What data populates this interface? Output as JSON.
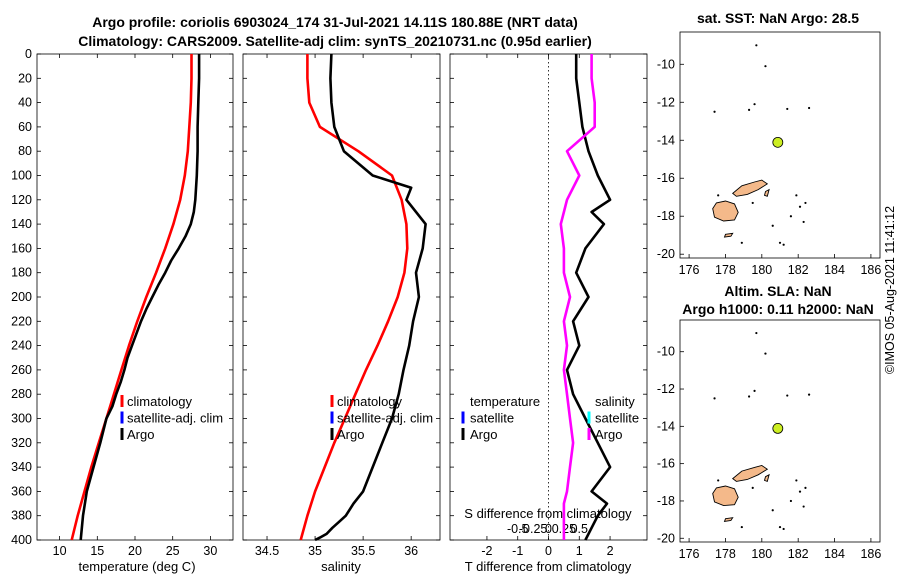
{
  "header": {
    "title_line1": "Argo profile: coriolis 6903024_174 31-Jul-2021 14.11S 180.88E (NRT data)",
    "title_line2": "Climatology: CARS2009. Satellite-adj clim: synTS_20210731.nc (0.95d earlier)"
  },
  "timestamp": "©IMOS 05-Aug-2021 11:41:12",
  "colors": {
    "climatology": "#ff0000",
    "satellite_clim": "#0000ff",
    "argo": "#000000",
    "sal_diff": "#ff00ff",
    "sat_sal_diff": "#00ffff",
    "land": "#f4b98a",
    "marker": "#ccee22"
  },
  "chart_data": [
    {
      "type": "line",
      "id": "temperature",
      "xlabel": "temperature (deg C)",
      "ylabel": "",
      "xlim": [
        7,
        33
      ],
      "ylim": [
        400,
        0
      ],
      "xticks": [
        10,
        15,
        20,
        25,
        30
      ],
      "yticks": [
        0,
        20,
        40,
        60,
        80,
        100,
        120,
        140,
        160,
        180,
        200,
        220,
        240,
        260,
        280,
        300,
        320,
        340,
        360,
        380,
        400
      ],
      "legend": [
        "climatology",
        "satellite-adj. clim",
        "Argo"
      ],
      "series": [
        {
          "name": "climatology",
          "color": "#ff0000",
          "x": [
            27.5,
            27.5,
            27.4,
            27.2,
            27.0,
            26.6,
            26.0,
            25.1,
            24.0,
            22.8,
            21.5,
            20.3,
            19.2,
            18.2,
            17.2,
            16.2,
            15.2,
            14.2,
            13.3,
            12.4,
            11.6
          ],
          "depth": [
            0,
            20,
            40,
            60,
            80,
            100,
            120,
            140,
            160,
            180,
            200,
            220,
            240,
            260,
            280,
            300,
            320,
            340,
            360,
            380,
            400
          ]
        },
        {
          "name": "Argo",
          "color": "#000000",
          "x": [
            28.5,
            28.5,
            28.4,
            28.3,
            28.3,
            28.2,
            28.0,
            27.8,
            27.4,
            26.7,
            25.8,
            24.8,
            24.0,
            23.1,
            22.3,
            21.5,
            20.8,
            20.2,
            19.6,
            19.0,
            18.6,
            18.1,
            17.5,
            17.0,
            16.2,
            15.4,
            14.5,
            13.6,
            13.1,
            12.8
          ],
          "depth": [
            0,
            20,
            40,
            60,
            80,
            100,
            120,
            130,
            140,
            150,
            160,
            170,
            180,
            190,
            200,
            210,
            220,
            230,
            240,
            250,
            260,
            270,
            280,
            290,
            300,
            320,
            340,
            360,
            380,
            400
          ]
        }
      ]
    },
    {
      "type": "line",
      "id": "salinity",
      "xlabel": "salinity",
      "ylabel": "",
      "xlim": [
        34.25,
        36.3
      ],
      "ylim": [
        400,
        0
      ],
      "xticks": [
        34.5,
        35,
        35.5,
        36
      ],
      "legend": [
        "climatology",
        "satellite-adj. clim",
        "Argo"
      ],
      "series": [
        {
          "name": "climatology",
          "color": "#ff0000",
          "x": [
            34.92,
            34.92,
            34.94,
            35.05,
            35.45,
            35.8,
            35.9,
            35.95,
            35.96,
            35.93,
            35.86,
            35.76,
            35.65,
            35.53,
            35.42,
            35.31,
            35.2,
            35.1,
            35.0,
            34.92,
            34.85
          ],
          "depth": [
            0,
            20,
            40,
            60,
            80,
            100,
            120,
            140,
            160,
            180,
            200,
            220,
            240,
            260,
            280,
            300,
            320,
            340,
            360,
            380,
            400
          ]
        },
        {
          "name": "Argo",
          "color": "#000000",
          "x": [
            35.17,
            35.16,
            35.17,
            35.2,
            35.3,
            35.6,
            36.0,
            35.95,
            36.15,
            36.12,
            36.05,
            36.08,
            36.02,
            35.98,
            35.92,
            35.87,
            35.8,
            35.7,
            35.6,
            35.5,
            35.4,
            35.32,
            35.25,
            35.18,
            35.12,
            35.05,
            35.0
          ],
          "depth": [
            0,
            20,
            40,
            60,
            80,
            100,
            110,
            120,
            140,
            160,
            180,
            200,
            220,
            240,
            260,
            280,
            300,
            320,
            340,
            360,
            370,
            380,
            385,
            390,
            395,
            398,
            400
          ]
        }
      ]
    },
    {
      "type": "line",
      "id": "difference",
      "xlabel": "T difference from climatology",
      "xlabel2": "S difference from climatology",
      "xlim": [
        -3.2,
        3.2
      ],
      "ylim": [
        400,
        0
      ],
      "xticks": [
        -2,
        -1,
        0,
        1,
        2
      ],
      "xticks2": [
        "-0.5",
        "-0.25",
        "0",
        "0.25",
        "0.5"
      ],
      "legend_t": [
        "temperature",
        "satellite",
        "Argo"
      ],
      "legend_s": [
        "salinity",
        "satellite",
        "Argo"
      ],
      "series": [
        {
          "name": "temperature",
          "color": "#000000",
          "x": [
            0.9,
            0.9,
            1.0,
            1.1,
            1.3,
            1.6,
            2.0,
            1.4,
            1.8,
            1.2,
            0.9,
            1.3,
            0.8,
            1.0,
            0.6,
            0.8,
            1.2,
            1.6,
            2.0,
            1.4,
            1.9,
            1.6,
            1.2
          ],
          "depth": [
            0,
            20,
            40,
            60,
            80,
            100,
            120,
            130,
            140,
            160,
            180,
            200,
            220,
            240,
            260,
            280,
            300,
            320,
            340,
            360,
            370,
            380,
            400
          ]
        },
        {
          "name": "salinity",
          "color": "#ff00ff",
          "x": [
            1.4,
            1.4,
            1.5,
            1.5,
            0.6,
            1.0,
            0.6,
            0.5,
            0.4,
            0.5,
            0.5,
            0.7,
            0.5,
            0.6,
            0.5,
            0.6,
            0.7,
            0.8,
            0.7,
            0.6,
            0.5,
            0.5,
            0.5
          ],
          "depth": [
            0,
            20,
            40,
            60,
            80,
            100,
            120,
            130,
            140,
            160,
            180,
            200,
            220,
            240,
            260,
            280,
            300,
            320,
            340,
            360,
            370,
            380,
            400
          ]
        }
      ]
    },
    {
      "type": "map",
      "id": "map_sst",
      "title": "sat. SST: NaN Argo: 28.5",
      "xlim": [
        175.5,
        186.5
      ],
      "ylim": [
        -20.2,
        -8.3
      ],
      "xticks": [
        176,
        178,
        180,
        182,
        184,
        186
      ],
      "yticks": [
        -10,
        -12,
        -14,
        -16,
        -18,
        -20
      ],
      "xticklabels": [
        "176",
        "178",
        "180",
        "182",
        "184",
        "186"
      ],
      "yticklabels": [
        "-10",
        "-12",
        "-14",
        "-16",
        "-18",
        "-20"
      ],
      "float_position": {
        "lon": 180.88,
        "lat": -14.11
      }
    },
    {
      "type": "map",
      "id": "map_sla",
      "title_line1": "Altim. SLA: NaN",
      "title_line2": "Argo h1000: 0.11 h2000: NaN",
      "xlim": [
        175.5,
        186.5
      ],
      "ylim": [
        -20.2,
        -8.3
      ],
      "xticks": [
        176,
        178,
        180,
        182,
        184,
        186
      ],
      "yticks": [
        -10,
        -12,
        -14,
        -16,
        -18,
        -20
      ],
      "xticklabels": [
        "176",
        "178",
        "180",
        "182",
        "184",
        "186"
      ],
      "yticklabels": [
        "-10",
        "-12",
        "-14",
        "-16",
        "-18",
        "-20"
      ],
      "float_position": {
        "lon": 180.88,
        "lat": -14.11
      }
    }
  ]
}
